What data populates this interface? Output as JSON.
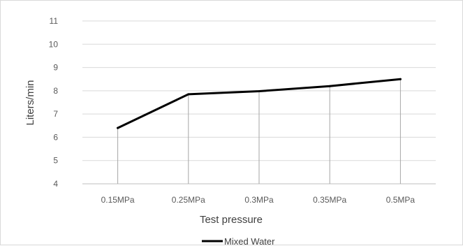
{
  "chart_data": {
    "type": "line",
    "categories": [
      "0.15MPa",
      "0.25MPa",
      "0.3MPa",
      "0.35MPa",
      "0.5MPa"
    ],
    "series": [
      {
        "name": "Mixed Water",
        "values": [
          6.4,
          7.85,
          7.98,
          8.2,
          8.5
        ],
        "color": "#000000"
      }
    ],
    "xlabel": "Test pressure",
    "ylabel": "Liters/min",
    "ylim": [
      4,
      11
    ],
    "yticks": [
      4,
      5,
      6,
      7,
      8,
      9,
      10,
      11
    ],
    "grid": "horizontal",
    "drop_lines": true,
    "legend_position": "bottom"
  }
}
